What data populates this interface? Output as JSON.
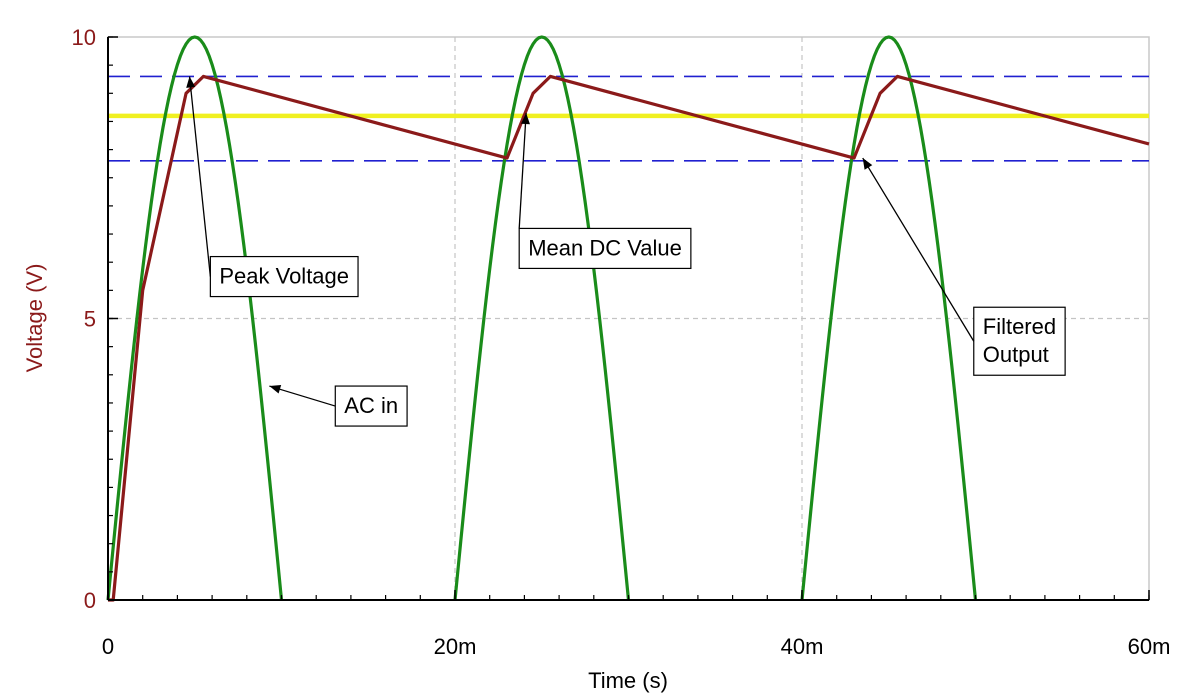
{
  "chart_data": {
    "type": "line",
    "xlabel": "Time (s)",
    "ylabel": "Voltage (V)",
    "xlim": [
      0,
      0.06
    ],
    "ylim": [
      0,
      10
    ],
    "x_ticks": [
      {
        "value": 0,
        "label": "0"
      },
      {
        "value": 0.02,
        "label": "20m"
      },
      {
        "value": 0.04,
        "label": "40m"
      },
      {
        "value": 0.06,
        "label": "60m"
      }
    ],
    "y_ticks": [
      {
        "value": 0,
        "label": "0"
      },
      {
        "value": 5,
        "label": "5"
      },
      {
        "value": 10,
        "label": "10"
      }
    ],
    "grid": true,
    "series": [
      {
        "key": "ac-in",
        "color": "#1a8c1a",
        "peak": 10,
        "period": 0.02,
        "half_cycle": 0.01,
        "x": [
          0,
          0.0025,
          0.005,
          0.0075,
          0.01,
          0.02,
          0.0225,
          0.025,
          0.0275,
          0.03,
          0.04,
          0.0425,
          0.045,
          0.0475,
          0.05
        ],
        "y": [
          0,
          7.07,
          10,
          7.07,
          0,
          0,
          7.07,
          10,
          7.07,
          0,
          0,
          7.07,
          10,
          7.07,
          0
        ]
      },
      {
        "key": "filtered-output",
        "color": "#8b1a1a",
        "x": [
          0,
          0.0003,
          0.002,
          0.0045,
          0.0055,
          0.023,
          0.0245,
          0.0255,
          0.043,
          0.0445,
          0.0455,
          0.06
        ],
        "y": [
          0,
          0,
          5.5,
          9.0,
          9.3,
          7.85,
          9.0,
          9.3,
          7.85,
          9.0,
          9.3,
          8.1
        ]
      }
    ],
    "reference_lines": [
      {
        "key": "upper-ripple",
        "y": 9.3,
        "color": "#2020d0",
        "style": "dashed"
      },
      {
        "key": "lower-ripple",
        "y": 7.8,
        "color": "#2020d0",
        "style": "dashed"
      },
      {
        "key": "mean-dc",
        "y": 8.6,
        "color": "#f0f020",
        "style": "solid"
      }
    ],
    "annotations": [
      {
        "key": "peak-voltage",
        "text": [
          "Peak Voltage"
        ],
        "box_at": [
          0.0059,
          6.1
        ],
        "arrow_to": [
          0.0047,
          9.3
        ]
      },
      {
        "key": "mean-dc-value",
        "text": [
          "Mean DC Value"
        ],
        "box_at": [
          0.0237,
          6.6
        ],
        "arrow_to": [
          0.0241,
          8.65
        ]
      },
      {
        "key": "filtered-output",
        "text": [
          "Filtered",
          "Output"
        ],
        "box_at": [
          0.0499,
          5.2
        ],
        "arrow_to": [
          0.0435,
          7.85
        ]
      },
      {
        "key": "ac-in",
        "text": [
          "AC in"
        ],
        "box_at": [
          0.0131,
          3.8
        ],
        "arrow_to": [
          0.0093,
          3.8
        ]
      }
    ]
  }
}
